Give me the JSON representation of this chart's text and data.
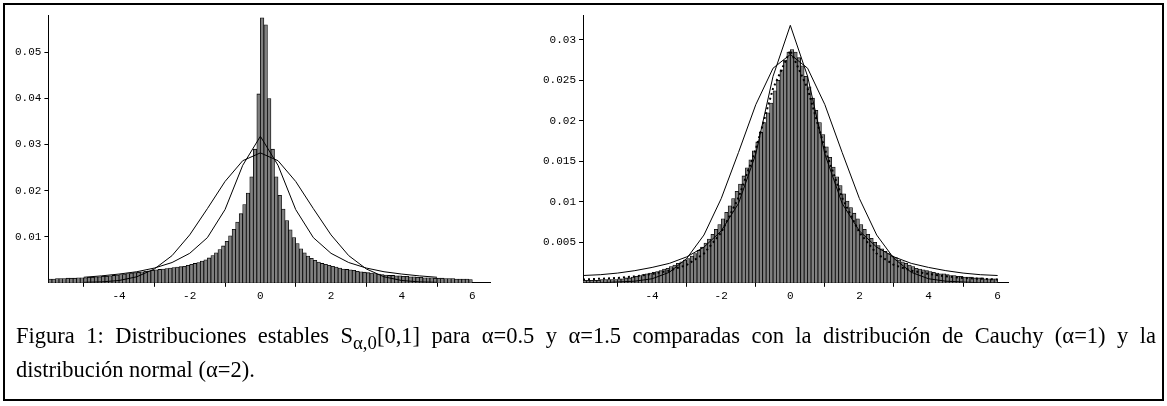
{
  "chart_data": [
    {
      "type": "histogram",
      "bins": [
        -6,
        -5.9,
        -5.8,
        -5.7,
        -5.6,
        -5.5,
        -5.4,
        -5.3,
        -5.2,
        -5.1,
        -5,
        -4.9,
        -4.8,
        -4.7,
        -4.6,
        -4.5,
        -4.4,
        -4.3,
        -4.2,
        -4.1,
        -4,
        -3.9,
        -3.8,
        -3.7,
        -3.6,
        -3.5,
        -3.4,
        -3.3,
        -3.2,
        -3.1,
        -3,
        -2.9,
        -2.8,
        -2.7,
        -2.6,
        -2.5,
        -2.4,
        -2.3,
        -2.2,
        -2.1,
        -2,
        -1.9,
        -1.8,
        -1.7,
        -1.6,
        -1.5,
        -1.4,
        -1.3,
        -1.2,
        -1.1,
        -1,
        -0.9,
        -0.8,
        -0.7,
        -0.6,
        -0.5,
        -0.4,
        -0.3,
        -0.2,
        -0.1,
        0,
        0.1,
        0.2,
        0.3,
        0.4,
        0.5,
        0.6,
        0.7,
        0.8,
        0.9,
        1,
        1.1,
        1.2,
        1.3,
        1.4,
        1.5,
        1.6,
        1.7,
        1.8,
        1.9,
        2,
        2.1,
        2.2,
        2.3,
        2.4,
        2.5,
        2.6,
        2.7,
        2.8,
        2.9,
        3,
        3.1,
        3.2,
        3.3,
        3.4,
        3.5,
        3.6,
        3.7,
        3.8,
        3.9,
        4,
        4.1,
        4.2,
        4.3,
        4.4,
        4.5,
        4.6,
        4.7,
        4.8,
        4.9,
        5,
        5.1,
        5.2,
        5.3,
        5.4,
        5.5,
        5.6,
        5.7,
        5.8,
        5.9,
        6
      ],
      "values": [
        0.0008,
        0.0008,
        0.0009,
        0.0009,
        0.0009,
        0.001,
        0.001,
        0.001,
        0.0011,
        0.0011,
        0.0011,
        0.0012,
        0.0012,
        0.0013,
        0.0013,
        0.0014,
        0.0014,
        0.0015,
        0.0016,
        0.0017,
        0.0018,
        0.0019,
        0.002,
        0.0021,
        0.0022,
        0.0023,
        0.0024,
        0.0025,
        0.0026,
        0.0027,
        0.0028,
        0.0029,
        0.003,
        0.0031,
        0.0032,
        0.0033,
        0.0034,
        0.0035,
        0.0036,
        0.0038,
        0.004,
        0.0042,
        0.0044,
        0.0047,
        0.005,
        0.0054,
        0.0059,
        0.0065,
        0.0072,
        0.008,
        0.009,
        0.0102,
        0.0116,
        0.0132,
        0.015,
        0.017,
        0.0195,
        0.023,
        0.029,
        0.041,
        0.0575,
        0.056,
        0.04,
        0.029,
        0.023,
        0.019,
        0.016,
        0.0135,
        0.0115,
        0.0098,
        0.0085,
        0.0074,
        0.0065,
        0.0058,
        0.0053,
        0.0049,
        0.0045,
        0.0042,
        0.004,
        0.0038,
        0.0036,
        0.0034,
        0.0032,
        0.003,
        0.0029,
        0.0028,
        0.0027,
        0.0025,
        0.0024,
        0.0023,
        0.0022,
        0.0021,
        0.002,
        0.0019,
        0.0018,
        0.0017,
        0.0016,
        0.0016,
        0.0015,
        0.0015,
        0.0014,
        0.0014,
        0.0013,
        0.0013,
        0.0012,
        0.0012,
        0.0011,
        0.0011,
        0.0011,
        0.001,
        0.001,
        0.001,
        0.0009,
        0.0009,
        0.0009,
        0.0008,
        0.0008,
        0.0008,
        0.0008,
        0.0007
      ],
      "color": "#808080",
      "series": [
        {
          "type": "line",
          "color": "#000000",
          "x": [
            -5,
            -4.5,
            -4,
            -3.5,
            -3,
            -2.5,
            -2,
            -1.5,
            -1,
            -0.5,
            0,
            0.5,
            1,
            1.5,
            2,
            2.5,
            3,
            3.5,
            4,
            4.5,
            5
          ],
          "values": [
            0.0012,
            0.0015,
            0.0019,
            0.0024,
            0.0032,
            0.0044,
            0.0064,
            0.0098,
            0.0159,
            0.0255,
            0.0318,
            0.0255,
            0.0159,
            0.0098,
            0.0064,
            0.0044,
            0.0032,
            0.0024,
            0.0019,
            0.0015,
            0.0012
          ]
        },
        {
          "type": "line",
          "color": "#000000",
          "x": [
            -5,
            -4.5,
            -4,
            -3.5,
            -3,
            -2.5,
            -2,
            -1.5,
            -1,
            -0.5,
            0,
            0.5,
            1,
            1.5,
            2,
            2.5,
            3,
            3.5,
            4,
            4.5,
            5
          ],
          "values": [
            0.0001,
            0.0002,
            0.0005,
            0.0013,
            0.003,
            0.0059,
            0.0104,
            0.0161,
            0.022,
            0.0265,
            0.0282,
            0.0265,
            0.022,
            0.0161,
            0.0104,
            0.0059,
            0.003,
            0.0013,
            0.0005,
            0.0002,
            0.0001
          ]
        }
      ],
      "xlim": [
        -6,
        6.5
      ],
      "xticks": [
        -4,
        -2,
        0,
        2,
        4,
        6
      ],
      "ylim": [
        0,
        0.058
      ],
      "yticks": [
        0.01,
        0.02,
        0.03,
        0.04,
        0.05
      ],
      "annotations": [
        "Figura 1: Distribuciones estables S$_{α,0}$[0,1] para α=0.5 y α=1.5 comparadas con  la distribución de Cauchy (α=1) y la distribución normal (α=2)."
      ]
    },
    {
      "type": "histogram",
      "bins": [
        -6,
        -5.9,
        -5.8,
        -5.7,
        -5.6,
        -5.5,
        -5.4,
        -5.3,
        -5.2,
        -5.1,
        -5,
        -4.9,
        -4.8,
        -4.7,
        -4.6,
        -4.5,
        -4.4,
        -4.3,
        -4.2,
        -4.1,
        -4,
        -3.9,
        -3.8,
        -3.7,
        -3.6,
        -3.5,
        -3.4,
        -3.3,
        -3.2,
        -3.1,
        -3,
        -2.9,
        -2.8,
        -2.7,
        -2.6,
        -2.5,
        -2.4,
        -2.3,
        -2.2,
        -2.1,
        -2,
        -1.9,
        -1.8,
        -1.7,
        -1.6,
        -1.5,
        -1.4,
        -1.3,
        -1.2,
        -1.1,
        -1,
        -0.9,
        -0.8,
        -0.7,
        -0.6,
        -0.5,
        -0.4,
        -0.3,
        -0.2,
        -0.1,
        0,
        0.1,
        0.2,
        0.3,
        0.4,
        0.5,
        0.6,
        0.7,
        0.8,
        0.9,
        1,
        1.1,
        1.2,
        1.3,
        1.4,
        1.5,
        1.6,
        1.7,
        1.8,
        1.9,
        2,
        2.1,
        2.2,
        2.3,
        2.4,
        2.5,
        2.6,
        2.7,
        2.8,
        2.9,
        3,
        3.1,
        3.2,
        3.3,
        3.4,
        3.5,
        3.6,
        3.7,
        3.8,
        3.9,
        4,
        4.1,
        4.2,
        4.3,
        4.4,
        4.5,
        4.6,
        4.7,
        4.8,
        4.9,
        5,
        5.1,
        5.2,
        5.3,
        5.4,
        5.5,
        5.6,
        5.7,
        5.8,
        5.9,
        6
      ],
      "values": [
        0.0003,
        0.0003,
        0.0003,
        0.0003,
        0.0003,
        0.0004,
        0.0004,
        0.0004,
        0.0004,
        0.0004,
        0.0005,
        0.0005,
        0.0006,
        0.0006,
        0.0007,
        0.0008,
        0.0009,
        0.001,
        0.0011,
        0.0012,
        0.0013,
        0.0014,
        0.0015,
        0.0017,
        0.0018,
        0.002,
        0.0022,
        0.0024,
        0.0026,
        0.0028,
        0.003,
        0.0033,
        0.0036,
        0.004,
        0.0044,
        0.0049,
        0.0054,
        0.006,
        0.0066,
        0.0072,
        0.0079,
        0.0087,
        0.0095,
        0.0104,
        0.0113,
        0.0122,
        0.0132,
        0.0142,
        0.0152,
        0.0163,
        0.0174,
        0.0186,
        0.0198,
        0.021,
        0.0222,
        0.0237,
        0.025,
        0.0263,
        0.0275,
        0.0285,
        0.0288,
        0.0285,
        0.0278,
        0.0268,
        0.0255,
        0.0242,
        0.0228,
        0.0213,
        0.0198,
        0.0183,
        0.0168,
        0.0155,
        0.0143,
        0.0131,
        0.012,
        0.011,
        0.0101,
        0.0093,
        0.0086,
        0.0079,
        0.0072,
        0.0066,
        0.006,
        0.0055,
        0.005,
        0.0046,
        0.0042,
        0.0039,
        0.0036,
        0.0033,
        0.0031,
        0.0028,
        0.0026,
        0.0024,
        0.0022,
        0.002,
        0.0018,
        0.0017,
        0.0016,
        0.0015,
        0.0014,
        0.0013,
        0.0012,
        0.0011,
        0.0011,
        0.001,
        0.0009,
        0.0009,
        0.0008,
        0.0008,
        0.0007,
        0.0007,
        0.0007,
        0.0006,
        0.0006,
        0.0006,
        0.0005,
        0.0005,
        0.0005,
        0.0005
      ],
      "color": "#808080",
      "series": [
        {
          "type": "line",
          "color": "#000000",
          "x": [
            -6,
            -5.5,
            -5,
            -4.5,
            -4,
            -3.5,
            -3,
            -2.5,
            -2,
            -1.5,
            -1,
            -0.5,
            0,
            0.5,
            1,
            1.5,
            2,
            2.5,
            3,
            3.5,
            4,
            4.5,
            5,
            5.5,
            6
          ],
          "values": [
            0.0009,
            0.001,
            0.0012,
            0.0015,
            0.0019,
            0.0024,
            0.0032,
            0.0044,
            0.0064,
            0.0098,
            0.0159,
            0.0255,
            0.0318,
            0.0255,
            0.0159,
            0.0098,
            0.0064,
            0.0044,
            0.0032,
            0.0024,
            0.0019,
            0.0015,
            0.0012,
            0.001,
            0.0009
          ]
        },
        {
          "type": "line",
          "color": "#000000",
          "x": [
            -6,
            -5.5,
            -5,
            -4.5,
            -4,
            -3.5,
            -3,
            -2.5,
            -2,
            -1.5,
            -1,
            -0.5,
            0,
            0.5,
            1,
            1.5,
            2,
            2.5,
            3,
            3.5,
            4,
            4.5,
            5,
            5.5,
            6
          ],
          "values": [
            0,
            0,
            0.0001,
            0.0002,
            0.0005,
            0.0013,
            0.003,
            0.0059,
            0.0104,
            0.0161,
            0.022,
            0.0265,
            0.0282,
            0.0265,
            0.022,
            0.0161,
            0.0104,
            0.0059,
            0.003,
            0.0013,
            0.0005,
            0.0002,
            0.0001,
            0,
            0
          ]
        },
        {
          "type": "line",
          "color": "#000000",
          "line_style": "dotted",
          "x": [
            -6,
            -5.5,
            -5,
            -4.5,
            -4,
            -3.5,
            -3,
            -2.5,
            -2,
            -1.5,
            -1,
            -0.5,
            0,
            0.5,
            1,
            1.5,
            2,
            2.5,
            3,
            3.5,
            4,
            4.5,
            5,
            5.5,
            6
          ],
          "values": [
            0.0004,
            0.0005,
            0.0006,
            0.0008,
            0.0011,
            0.0015,
            0.0022,
            0.0036,
            0.0062,
            0.0105,
            0.0165,
            0.024,
            0.0287,
            0.024,
            0.0165,
            0.0105,
            0.0062,
            0.0036,
            0.0022,
            0.0015,
            0.0011,
            0.0008,
            0.0006,
            0.0005,
            0.0004
          ]
        }
      ],
      "xlim": [
        -6,
        6.3
      ],
      "xticks": [
        -4,
        -2,
        0,
        2,
        4,
        6
      ],
      "ylim": [
        0,
        0.033
      ],
      "yticks": [
        0.005,
        0.01,
        0.015,
        0.02,
        0.025,
        0.03
      ]
    }
  ]
}
